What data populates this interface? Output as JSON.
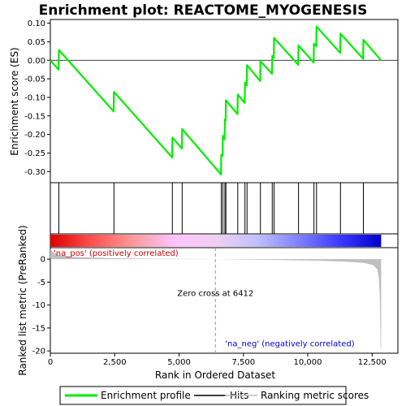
{
  "chart_data": {
    "type": "line",
    "title": "Enrichment plot: REACTOME_MYOGENESIS",
    "xlabel": "Rank in Ordered Dataset",
    "ylabel_top": "Enrichment score (ES)",
    "ylabel_bottom": "Ranked list metric (PreRanked)",
    "xlim": [
      0,
      13500
    ],
    "ylim_top": [
      -0.33,
      0.11
    ],
    "ylim_bottom": [
      -20.5,
      2.5
    ],
    "x_ticks": [
      0,
      2500,
      5000,
      7500,
      10000,
      12500
    ],
    "x_tick_labels": [
      "0",
      "2,500",
      "5,000",
      "7,500",
      "10,000",
      "12,500"
    ],
    "y_ticks_top": [
      0.1,
      0.05,
      0.0,
      -0.05,
      -0.1,
      -0.15,
      -0.2,
      -0.25,
      -0.3
    ],
    "y_tick_labels_top": [
      "0.10",
      "0.05",
      "0.00",
      "-0.05",
      "-0.10",
      "-0.15",
      "-0.20",
      "-0.25",
      "-0.30"
    ],
    "y_ticks_bottom": [
      0,
      -5,
      -10,
      -15,
      -20
    ],
    "y_tick_labels_bottom": [
      "0",
      "-5",
      "-10",
      "-15",
      "-20"
    ],
    "hits": [
      330,
      2470,
      4740,
      5120,
      6640,
      6700,
      6780,
      6820,
      7280,
      7560,
      7640,
      8160,
      8620,
      8690,
      9640,
      10240,
      10340,
      11270,
      12160
    ],
    "es_peaks": [
      [
        0,
        0.0
      ],
      [
        320,
        -0.025
      ],
      [
        330,
        0.028
      ],
      [
        2460,
        -0.138
      ],
      [
        2470,
        -0.085
      ],
      [
        4730,
        -0.262
      ],
      [
        4740,
        -0.208
      ],
      [
        5110,
        -0.238
      ],
      [
        5120,
        -0.185
      ],
      [
        6630,
        -0.308
      ],
      [
        6640,
        -0.254
      ],
      [
        6690,
        -0.257
      ],
      [
        6700,
        -0.204
      ],
      [
        6770,
        -0.213
      ],
      [
        6780,
        -0.159
      ],
      [
        6810,
        -0.163
      ],
      [
        6820,
        -0.108
      ],
      [
        7270,
        -0.145
      ],
      [
        7280,
        -0.092
      ],
      [
        7550,
        -0.115
      ],
      [
        7560,
        -0.06
      ],
      [
        7630,
        -0.068
      ],
      [
        7640,
        -0.013
      ],
      [
        8150,
        -0.056
      ],
      [
        8160,
        -0.002
      ],
      [
        8610,
        -0.036
      ],
      [
        8620,
        0.012
      ],
      [
        8680,
        0.006
      ],
      [
        8690,
        0.06
      ],
      [
        9630,
        -0.012
      ],
      [
        9640,
        0.04
      ],
      [
        10230,
        -0.006
      ],
      [
        10240,
        0.045
      ],
      [
        10330,
        0.038
      ],
      [
        10340,
        0.091
      ],
      [
        11260,
        0.02
      ],
      [
        11270,
        0.072
      ],
      [
        12150,
        0.004
      ],
      [
        12160,
        0.055
      ],
      [
        12850,
        0.0
      ]
    ],
    "ranked_metric": [
      [
        0,
        2.1
      ],
      [
        150,
        1.3
      ],
      [
        400,
        0.8
      ],
      [
        1000,
        0.45
      ],
      [
        2500,
        0.2
      ],
      [
        4000,
        0.1
      ],
      [
        5500,
        0.04
      ],
      [
        6412,
        0.0
      ],
      [
        7500,
        -0.08
      ],
      [
        9000,
        -0.2
      ],
      [
        10500,
        -0.35
      ],
      [
        11500,
        -0.55
      ],
      [
        12200,
        -0.85
      ],
      [
        12550,
        -1.3
      ],
      [
        12700,
        -2.2
      ],
      [
        12760,
        -4.0
      ],
      [
        12800,
        -8.5
      ],
      [
        12830,
        -19.5
      ],
      [
        12850,
        -19.5
      ]
    ],
    "colorbar_stops": [
      "#dd0000",
      "#ff5050",
      "#ff9a9a",
      "#ffc4ff",
      "#f0d0f0",
      "#c0c0ff",
      "#8080ff",
      "#3a3aff",
      "#0000cc"
    ],
    "zero_cross_label": "Zero cross at 6412",
    "zero_cross": 6412,
    "pos_label": "'na_pos' (positively correlated)",
    "neg_label": "'na_neg' (negatively correlated)",
    "colors": {
      "profile": "#00ee00",
      "hits": "#000000",
      "metric": "#bebebe",
      "pos": "#cc0000",
      "neg": "#0000cc",
      "zero_line": "#999999"
    },
    "legend": {
      "placement": "bottom",
      "items": [
        {
          "label": "Enrichment profile",
          "kind": "profile"
        },
        {
          "label": "Hits",
          "kind": "hits"
        },
        {
          "label": "Ranking metric scores",
          "kind": "metric"
        }
      ]
    }
  }
}
